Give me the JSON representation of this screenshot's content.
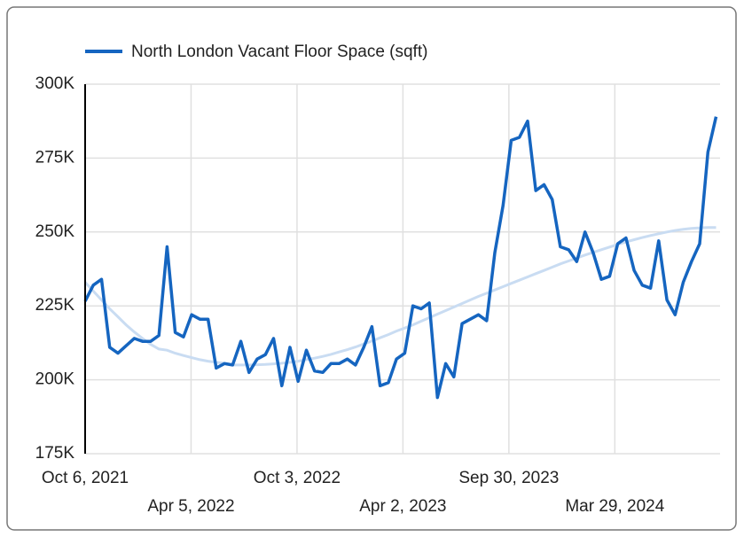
{
  "chart_data": {
    "type": "line",
    "x": [
      "2021-10-06",
      "2021-10-20",
      "2021-11-03",
      "2021-11-17",
      "2021-12-01",
      "2021-12-15",
      "2021-12-29",
      "2022-01-12",
      "2022-01-26",
      "2022-02-09",
      "2022-02-23",
      "2022-03-09",
      "2022-03-23",
      "2022-04-06",
      "2022-04-20",
      "2022-05-04",
      "2022-05-18",
      "2022-06-01",
      "2022-06-15",
      "2022-06-29",
      "2022-07-13",
      "2022-07-27",
      "2022-08-10",
      "2022-08-24",
      "2022-09-07",
      "2022-09-21",
      "2022-10-05",
      "2022-10-19",
      "2022-11-02",
      "2022-11-16",
      "2022-11-30",
      "2022-12-14",
      "2022-12-28",
      "2023-01-11",
      "2023-01-25",
      "2023-02-08",
      "2023-02-22",
      "2023-03-08",
      "2023-03-22",
      "2023-04-05",
      "2023-04-19",
      "2023-05-03",
      "2023-05-17",
      "2023-05-31",
      "2023-06-14",
      "2023-06-28",
      "2023-07-12",
      "2023-07-26",
      "2023-08-09",
      "2023-08-23",
      "2023-09-06",
      "2023-09-20",
      "2023-10-04",
      "2023-10-18",
      "2023-11-01",
      "2023-11-15",
      "2023-11-29",
      "2023-12-13",
      "2023-12-27",
      "2024-01-10",
      "2024-01-24",
      "2024-02-07",
      "2024-02-21",
      "2024-03-06",
      "2024-03-20",
      "2024-04-03",
      "2024-04-17",
      "2024-05-01",
      "2024-05-15",
      "2024-05-29",
      "2024-06-12",
      "2024-06-26",
      "2024-07-10",
      "2024-07-24",
      "2024-08-07",
      "2024-08-21",
      "2024-09-04",
      "2024-09-18"
    ],
    "series": [
      {
        "name": "North London Vacant Floor Space (sqft)",
        "color": "#1565c0",
        "values": [
          226600,
          232000,
          234000,
          211000,
          209000,
          211500,
          214000,
          213000,
          213000,
          215000,
          245000,
          216000,
          214500,
          222000,
          220500,
          220500,
          204000,
          205500,
          205000,
          213000,
          202500,
          207000,
          208500,
          214000,
          198000,
          211000,
          199500,
          210000,
          203000,
          202500,
          205500,
          205500,
          207000,
          205000,
          211000,
          218000,
          198000,
          199000,
          207000,
          209000,
          225000,
          224000,
          226000,
          194000,
          205500,
          201000,
          219000,
          220500,
          222000,
          220000,
          243000,
          259000,
          281000,
          282000,
          287500,
          264000,
          266000,
          261000,
          245000,
          244000,
          240000,
          250000,
          243000,
          234000,
          235000,
          246000,
          248000,
          237000,
          232000,
          231000,
          247000,
          227000,
          222000,
          233000,
          240000,
          246000,
          277000,
          289000
        ]
      }
    ],
    "trendline": {
      "color": "#c9dcf2",
      "values": [
        233000,
        230000,
        227000,
        224000,
        221300,
        218600,
        216200,
        214000,
        212000,
        210400,
        210000,
        209000,
        208200,
        207500,
        206800,
        206300,
        205900,
        205600,
        205000,
        205000,
        205000,
        205100,
        205200,
        205400,
        205600,
        205900,
        206300,
        206800,
        207300,
        207900,
        208600,
        209400,
        210200,
        211100,
        212100,
        213100,
        214200,
        215300,
        216500,
        217500,
        218600,
        219800,
        221000,
        222200,
        223400,
        224600,
        225800,
        227000,
        228200,
        229300,
        230400,
        231500,
        232600,
        233700,
        234800,
        235900,
        237000,
        238100,
        239200,
        240200,
        241200,
        242200,
        243100,
        244000,
        244900,
        245800,
        246600,
        247400,
        248100,
        248800,
        249400,
        250000,
        250500,
        250900,
        251200,
        251400,
        251500,
        251500
      ]
    },
    "xlim": [
      "2021-10-06",
      "2024-09-18"
    ],
    "xticks": [
      {
        "value": "2021-10-06",
        "label": "Oct 6, 2021"
      },
      {
        "value": "2022-04-05",
        "label": "Apr 5, 2022"
      },
      {
        "value": "2022-10-03",
        "label": "Oct 3, 2022"
      },
      {
        "value": "2023-04-02",
        "label": "Apr 2, 2023"
      },
      {
        "value": "2023-09-30",
        "label": "Sep 30, 2023"
      },
      {
        "value": "2024-03-29",
        "label": "Mar 29, 2024"
      }
    ],
    "ylim": [
      175000,
      300000
    ],
    "yticks": [
      {
        "value": 175000,
        "label": "175K"
      },
      {
        "value": 200000,
        "label": "200K"
      },
      {
        "value": 225000,
        "label": "225K"
      },
      {
        "value": 250000,
        "label": "250K"
      },
      {
        "value": 275000,
        "label": "275K"
      },
      {
        "value": 300000,
        "label": "300K"
      }
    ],
    "grid": true
  }
}
